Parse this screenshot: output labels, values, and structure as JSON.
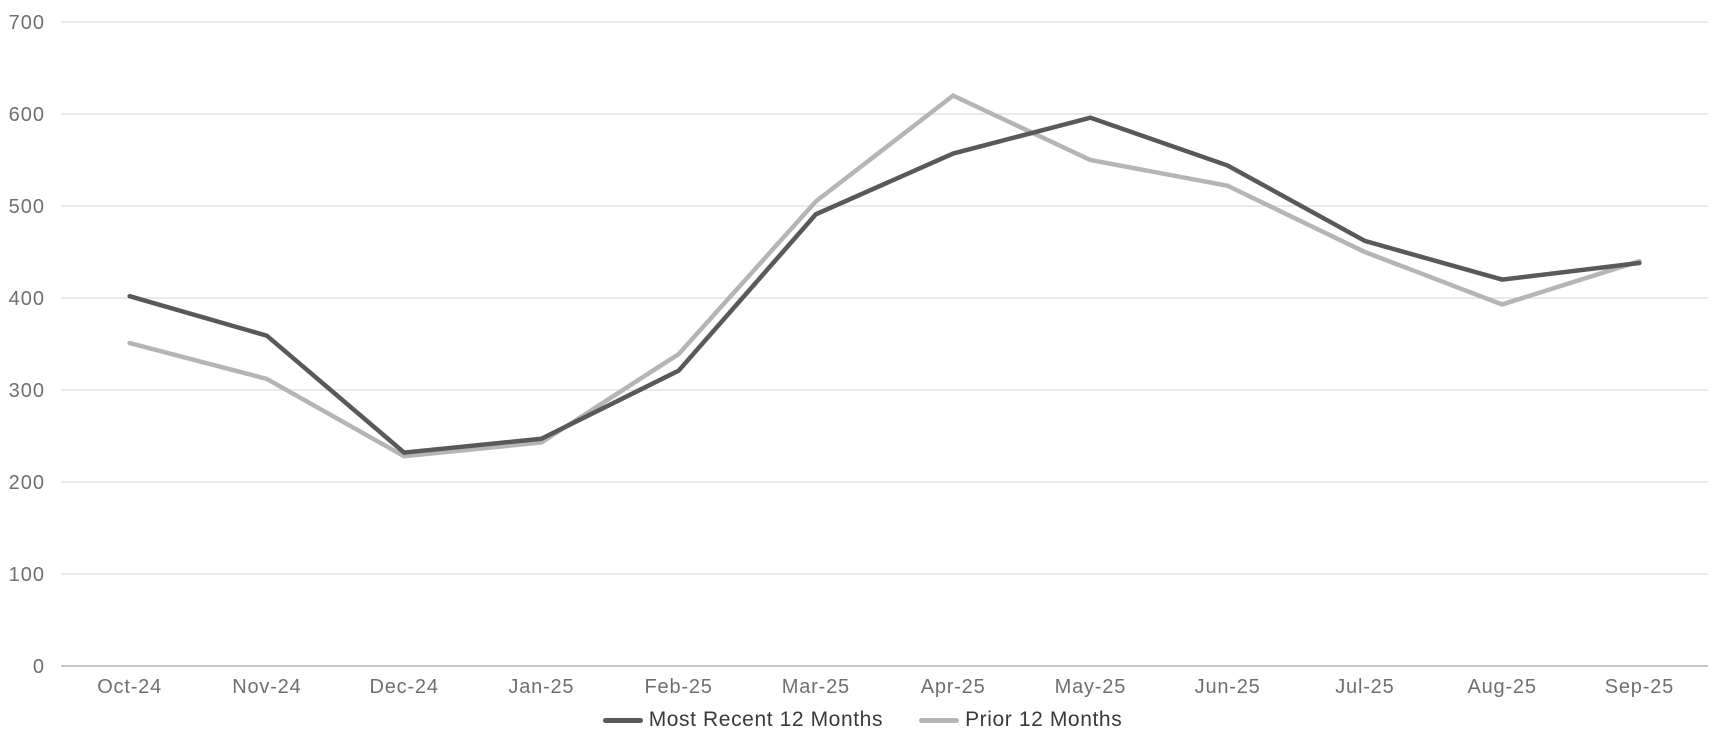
{
  "chart_data": {
    "type": "line",
    "title": "",
    "xlabel": "",
    "ylabel": "",
    "categories": [
      "Oct-24",
      "Nov-24",
      "Dec-24",
      "Jan-25",
      "Feb-25",
      "Mar-25",
      "Apr-25",
      "May-25",
      "Jun-25",
      "Jul-25",
      "Aug-25",
      "Sep-25"
    ],
    "series": [
      {
        "name": "Most Recent 12 Months",
        "color": "#58595b",
        "values": [
          402,
          359,
          232,
          247,
          321,
          491,
          557,
          596,
          544,
          462,
          420,
          438
        ]
      },
      {
        "name": "Prior 12 Months",
        "color": "#b5b5b5",
        "values": [
          351,
          312,
          228,
          243,
          339,
          505,
          620,
          550,
          522,
          450,
          393,
          440
        ]
      }
    ],
    "ylim": [
      0,
      700
    ],
    "yticks": [
      0,
      100,
      200,
      300,
      400,
      500,
      600,
      700
    ],
    "grid": "horizontal",
    "legend_position": "bottom"
  },
  "colors": {
    "background": "#ffffff",
    "gridline": "#e3e3e3",
    "zero_axis_line": "#c6c6c6",
    "tick_label": "#6f6f6f",
    "legend_text": "#3a3a3a"
  }
}
